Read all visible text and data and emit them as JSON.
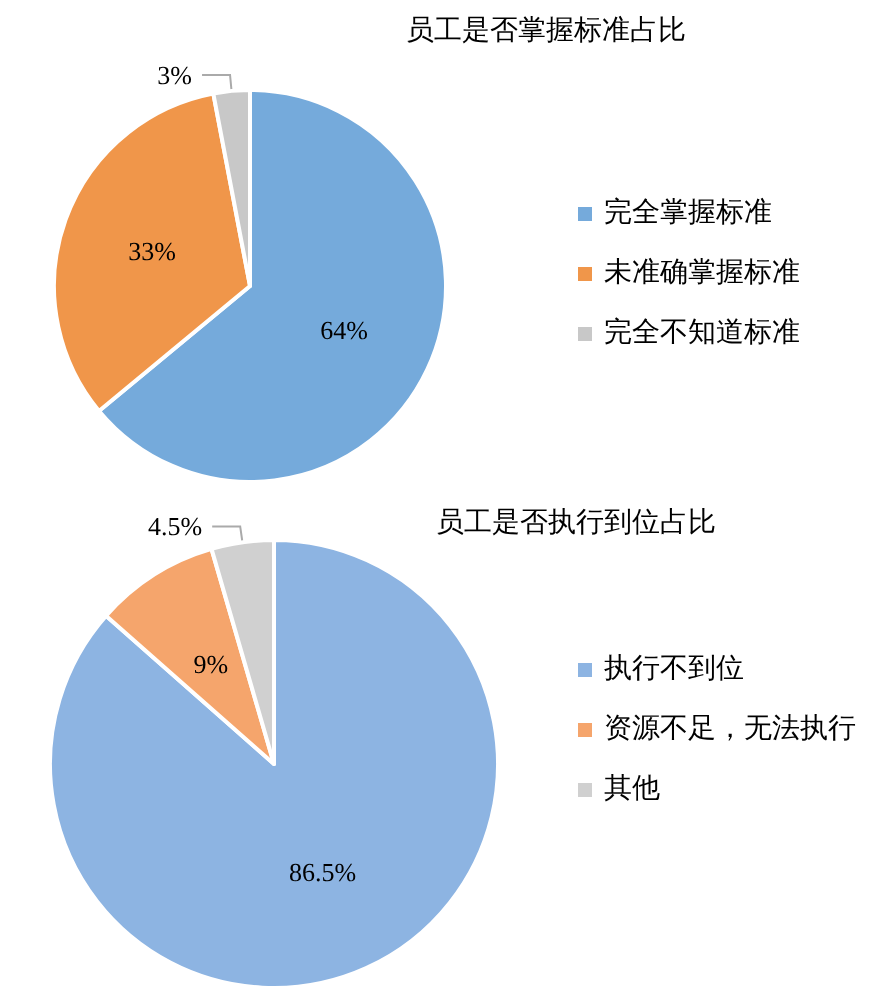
{
  "chart_data": [
    {
      "type": "pie",
      "title": "员工是否掌握标准占比",
      "categories": [
        "完全掌握标准",
        "未准确掌握标准",
        "完全不知道标准"
      ],
      "values": [
        64,
        33,
        3
      ],
      "colors": [
        "#75aadb",
        "#f0964a",
        "#c8c8c8"
      ],
      "value_labels": [
        "64%",
        "33%",
        "3%"
      ],
      "legend": "right"
    },
    {
      "type": "pie",
      "title": "员工是否执行到位占比",
      "categories": [
        "执行不到位",
        "资源不足，无法执行",
        "其他"
      ],
      "values": [
        86.5,
        9,
        4.5
      ],
      "colors": [
        "#8db4e2",
        "#f5a56c",
        "#d0d0d0"
      ],
      "value_labels": [
        "86.5%",
        "9%",
        "4.5%"
      ],
      "legend": "right"
    }
  ]
}
